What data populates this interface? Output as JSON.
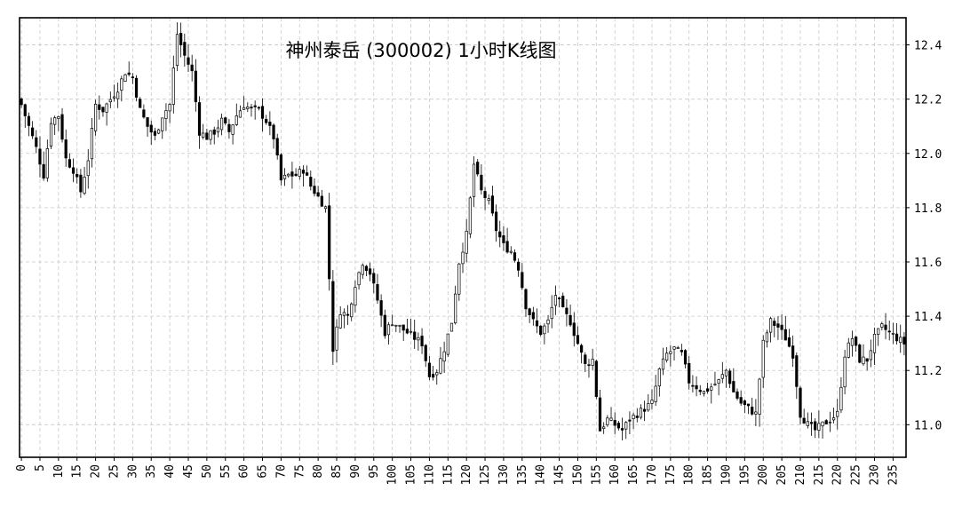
{
  "chart_data": {
    "type": "candlestick",
    "title": "神州泰岳 (300002) 1小时K线图",
    "xlabel": "",
    "ylabel": "",
    "grid": true,
    "ylim": [
      10.88,
      12.5
    ],
    "xlim": [
      -0.5,
      238.5
    ],
    "x_ticks": [
      0,
      5,
      10,
      15,
      20,
      25,
      30,
      35,
      40,
      45,
      50,
      55,
      60,
      65,
      70,
      75,
      80,
      85,
      90,
      95,
      100,
      105,
      110,
      115,
      120,
      125,
      130,
      135,
      140,
      145,
      150,
      155,
      160,
      165,
      170,
      175,
      180,
      185,
      190,
      195,
      200,
      205,
      210,
      215,
      220,
      225,
      230,
      235
    ],
    "y_ticks": [
      11.0,
      11.2,
      11.4,
      11.6,
      11.8,
      12.0,
      12.2,
      12.4
    ],
    "y_tick_labels": [
      "11.0",
      "11.2",
      "11.4",
      "11.6",
      "11.8",
      "12.0",
      "12.2",
      "12.4"
    ],
    "up_color": "#ffffff",
    "down_color": "#000000",
    "close_anchors": [
      [
        0,
        12.18
      ],
      [
        2,
        12.1
      ],
      [
        4,
        12.02
      ],
      [
        6,
        11.92
      ],
      [
        8,
        12.12
      ],
      [
        10,
        12.14
      ],
      [
        12,
        11.98
      ],
      [
        14,
        11.94
      ],
      [
        16,
        11.86
      ],
      [
        18,
        11.98
      ],
      [
        20,
        12.18
      ],
      [
        22,
        12.16
      ],
      [
        24,
        12.2
      ],
      [
        26,
        12.24
      ],
      [
        28,
        12.3
      ],
      [
        30,
        12.28
      ],
      [
        32,
        12.16
      ],
      [
        34,
        12.1
      ],
      [
        36,
        12.06
      ],
      [
        38,
        12.14
      ],
      [
        40,
        12.18
      ],
      [
        42,
        12.44
      ],
      [
        44,
        12.36
      ],
      [
        46,
        12.3
      ],
      [
        48,
        12.08
      ],
      [
        50,
        12.06
      ],
      [
        52,
        12.08
      ],
      [
        54,
        12.12
      ],
      [
        56,
        12.08
      ],
      [
        58,
        12.14
      ],
      [
        60,
        12.18
      ],
      [
        62,
        12.16
      ],
      [
        64,
        12.16
      ],
      [
        66,
        12.12
      ],
      [
        68,
        12.06
      ],
      [
        70,
        11.9
      ],
      [
        72,
        11.92
      ],
      [
        74,
        11.92
      ],
      [
        76,
        11.94
      ],
      [
        78,
        11.88
      ],
      [
        80,
        11.84
      ],
      [
        82,
        11.8
      ],
      [
        84,
        11.28
      ],
      [
        86,
        11.42
      ],
      [
        88,
        11.4
      ],
      [
        90,
        11.52
      ],
      [
        92,
        11.6
      ],
      [
        94,
        11.56
      ],
      [
        96,
        11.46
      ],
      [
        98,
        11.34
      ],
      [
        100,
        11.38
      ],
      [
        102,
        11.36
      ],
      [
        104,
        11.34
      ],
      [
        106,
        11.32
      ],
      [
        108,
        11.3
      ],
      [
        110,
        11.18
      ],
      [
        112,
        11.2
      ],
      [
        114,
        11.28
      ],
      [
        116,
        11.38
      ],
      [
        118,
        11.6
      ],
      [
        120,
        11.7
      ],
      [
        122,
        11.96
      ],
      [
        124,
        11.86
      ],
      [
        126,
        11.82
      ],
      [
        128,
        11.72
      ],
      [
        130,
        11.66
      ],
      [
        132,
        11.64
      ],
      [
        134,
        11.58
      ],
      [
        136,
        11.44
      ],
      [
        138,
        11.38
      ],
      [
        140,
        11.34
      ],
      [
        142,
        11.38
      ],
      [
        144,
        11.48
      ],
      [
        146,
        11.42
      ],
      [
        148,
        11.38
      ],
      [
        150,
        11.3
      ],
      [
        152,
        11.22
      ],
      [
        154,
        11.24
      ],
      [
        156,
        10.98
      ],
      [
        158,
        11.02
      ],
      [
        160,
        11.0
      ],
      [
        162,
        10.98
      ],
      [
        164,
        11.02
      ],
      [
        166,
        11.04
      ],
      [
        168,
        11.06
      ],
      [
        170,
        11.08
      ],
      [
        172,
        11.2
      ],
      [
        174,
        11.26
      ],
      [
        176,
        11.28
      ],
      [
        178,
        11.26
      ],
      [
        180,
        11.16
      ],
      [
        182,
        11.14
      ],
      [
        184,
        11.12
      ],
      [
        186,
        11.14
      ],
      [
        188,
        11.16
      ],
      [
        190,
        11.2
      ],
      [
        192,
        11.12
      ],
      [
        194,
        11.08
      ],
      [
        196,
        11.06
      ],
      [
        198,
        11.04
      ],
      [
        200,
        11.3
      ],
      [
        202,
        11.38
      ],
      [
        204,
        11.36
      ],
      [
        206,
        11.32
      ],
      [
        208,
        11.26
      ],
      [
        210,
        11.04
      ],
      [
        212,
        11.0
      ],
      [
        214,
        10.98
      ],
      [
        216,
        11.0
      ],
      [
        218,
        11.02
      ],
      [
        220,
        11.04
      ],
      [
        222,
        11.26
      ],
      [
        224,
        11.32
      ],
      [
        226,
        11.24
      ],
      [
        228,
        11.24
      ],
      [
        230,
        11.32
      ],
      [
        232,
        11.36
      ],
      [
        234,
        11.34
      ],
      [
        236,
        11.32
      ],
      [
        238,
        11.3
      ]
    ]
  }
}
